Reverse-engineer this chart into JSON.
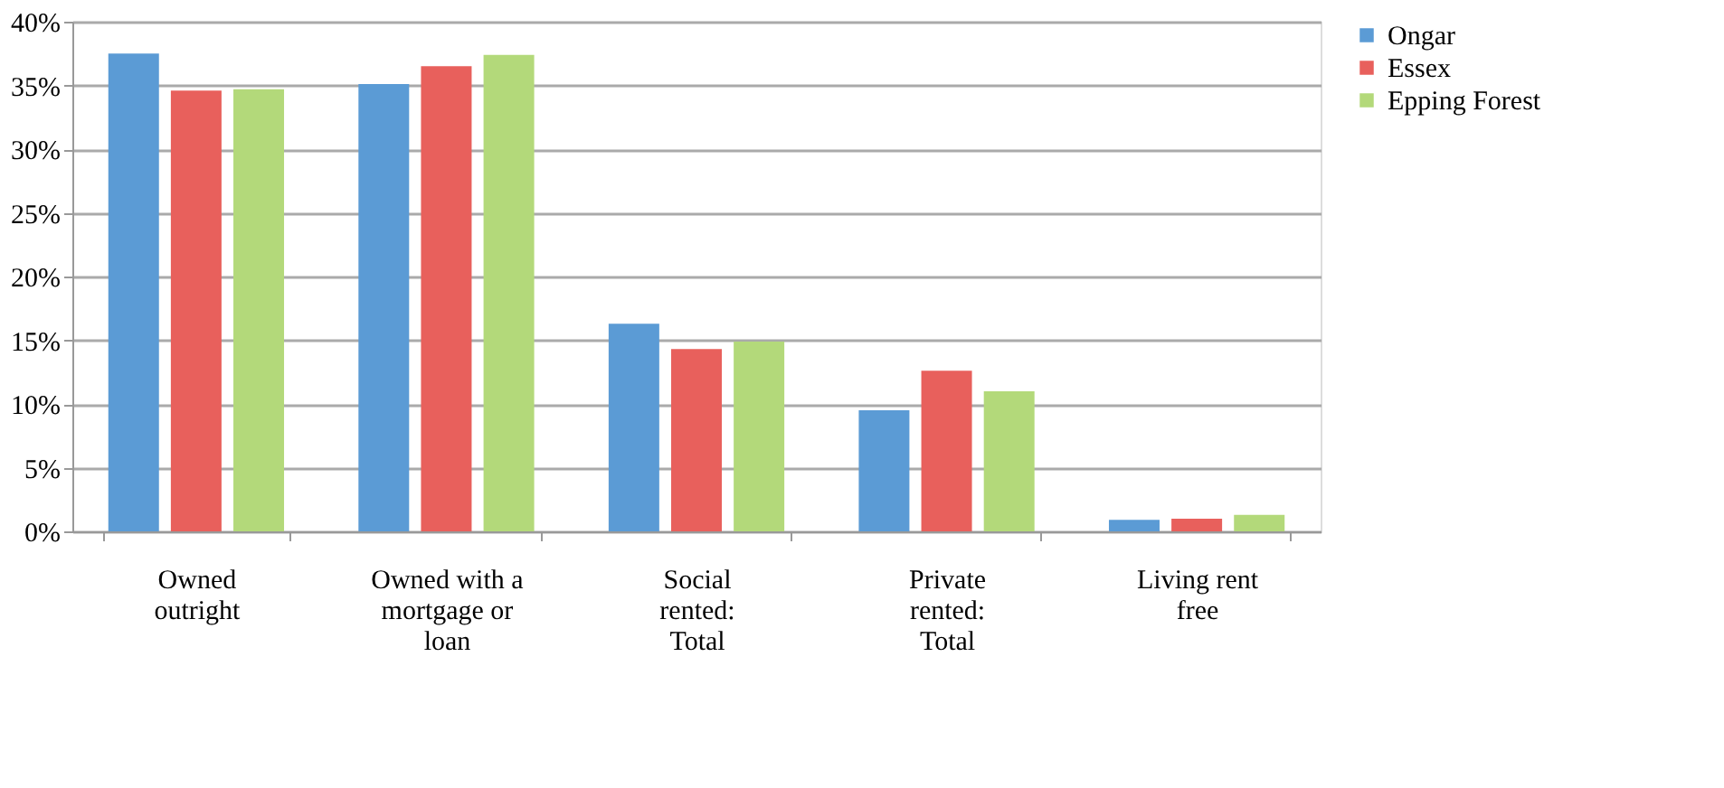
{
  "chart_data": {
    "type": "bar",
    "categories": [
      "Owned outright",
      "Owned with a mortgage or loan",
      "Social rented: Total",
      "Private rented: Total",
      "Living rent free"
    ],
    "series": [
      {
        "name": "Ongar",
        "color": "#5b9bd5",
        "values": [
          37.5,
          35.1,
          16.3,
          9.5,
          0.9
        ]
      },
      {
        "name": "Essex",
        "color": "#e8605c",
        "values": [
          34.6,
          36.5,
          14.3,
          12.6,
          1.0
        ]
      },
      {
        "name": "Epping Forest",
        "color": "#b3d97a",
        "values": [
          34.7,
          37.4,
          14.9,
          11.0,
          1.3
        ]
      }
    ],
    "ylim": [
      0,
      40
    ],
    "yticks": [
      {
        "value": 0,
        "label": "0%"
      },
      {
        "value": 5,
        "label": "5%"
      },
      {
        "value": 10,
        "label": "10%"
      },
      {
        "value": 15,
        "label": "15%"
      },
      {
        "value": 20,
        "label": "20%"
      },
      {
        "value": 25,
        "label": "25%"
      },
      {
        "value": 30,
        "label": "30%"
      },
      {
        "value": 35,
        "label": "35%"
      },
      {
        "value": 40,
        "label": "40%"
      }
    ],
    "grid": "y",
    "legend": "right"
  }
}
